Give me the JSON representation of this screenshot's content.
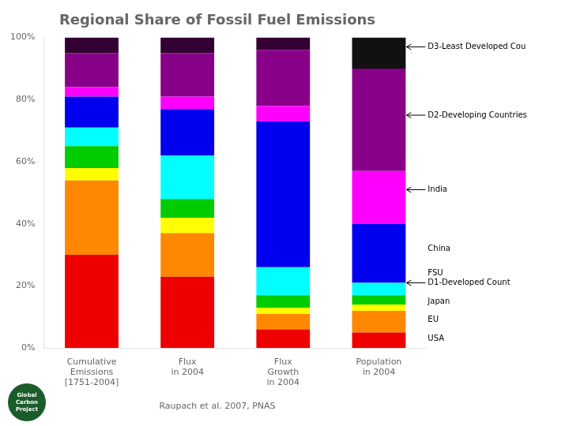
{
  "chart_data": {
    "type": "bar",
    "title": "Regional Share of Fossil Fuel Emissions",
    "categories": [
      "Cumulative\nEmissions\n[1751-2004]",
      "Flux\nin 2004",
      "Flux\nGrowth\nin 2004",
      "Population\nin 2004"
    ],
    "series": [
      {
        "color": "#ee0000",
        "values": [
          30,
          23,
          6,
          5
        ]
      },
      {
        "color": "#ff8800",
        "values": [
          24,
          14,
          5,
          7
        ]
      },
      {
        "color": "#ffff00",
        "values": [
          4,
          5,
          2,
          2
        ]
      },
      {
        "color": "#00cc00",
        "values": [
          7,
          6,
          4,
          3
        ]
      },
      {
        "color": "#00ffff",
        "values": [
          6,
          14,
          9,
          4
        ]
      },
      {
        "color": "#0000ee",
        "values": [
          10,
          15,
          47,
          19
        ]
      },
      {
        "color": "#ff00ff",
        "values": [
          3,
          4,
          5,
          17
        ]
      },
      {
        "color": "#880088",
        "values": [
          11,
          14,
          18,
          33
        ]
      },
      {
        "colors": [
          "#330033",
          "#330033",
          "#330033",
          "#111111"
        ],
        "values": [
          5,
          5,
          4,
          10
        ]
      }
    ],
    "stacked": true,
    "grid": false,
    "ylim": [
      0,
      100
    ],
    "yticks": [
      {
        "value": 0,
        "label": "0%"
      },
      {
        "value": 20,
        "label": "20%"
      },
      {
        "value": 40,
        "label": "40%"
      },
      {
        "value": 60,
        "label": "60%"
      },
      {
        "value": 80,
        "label": "80%"
      },
      {
        "value": 100,
        "label": "100%"
      }
    ],
    "annotations": [
      {
        "text": "D3-Least Developed Cou",
        "y": 97,
        "arrow": true
      },
      {
        "text": "D2-Developing Countries",
        "y": 75,
        "arrow": true
      },
      {
        "text": "India",
        "y": 51,
        "arrow": true
      },
      {
        "text": "China",
        "y": 32,
        "arrow": false
      },
      {
        "text": "FSU",
        "y": 24,
        "arrow": false
      },
      {
        "text": "D1-Developed Count",
        "y": 21,
        "arrow": true
      },
      {
        "text": "Japan",
        "y": 15,
        "arrow": false
      },
      {
        "text": "EU",
        "y": 9,
        "arrow": false
      },
      {
        "text": "USA",
        "y": 3,
        "arrow": false
      }
    ],
    "footer": "Raupach et al. 2007, PNAS",
    "logo": [
      "Global",
      "Carbon",
      "Project"
    ]
  }
}
